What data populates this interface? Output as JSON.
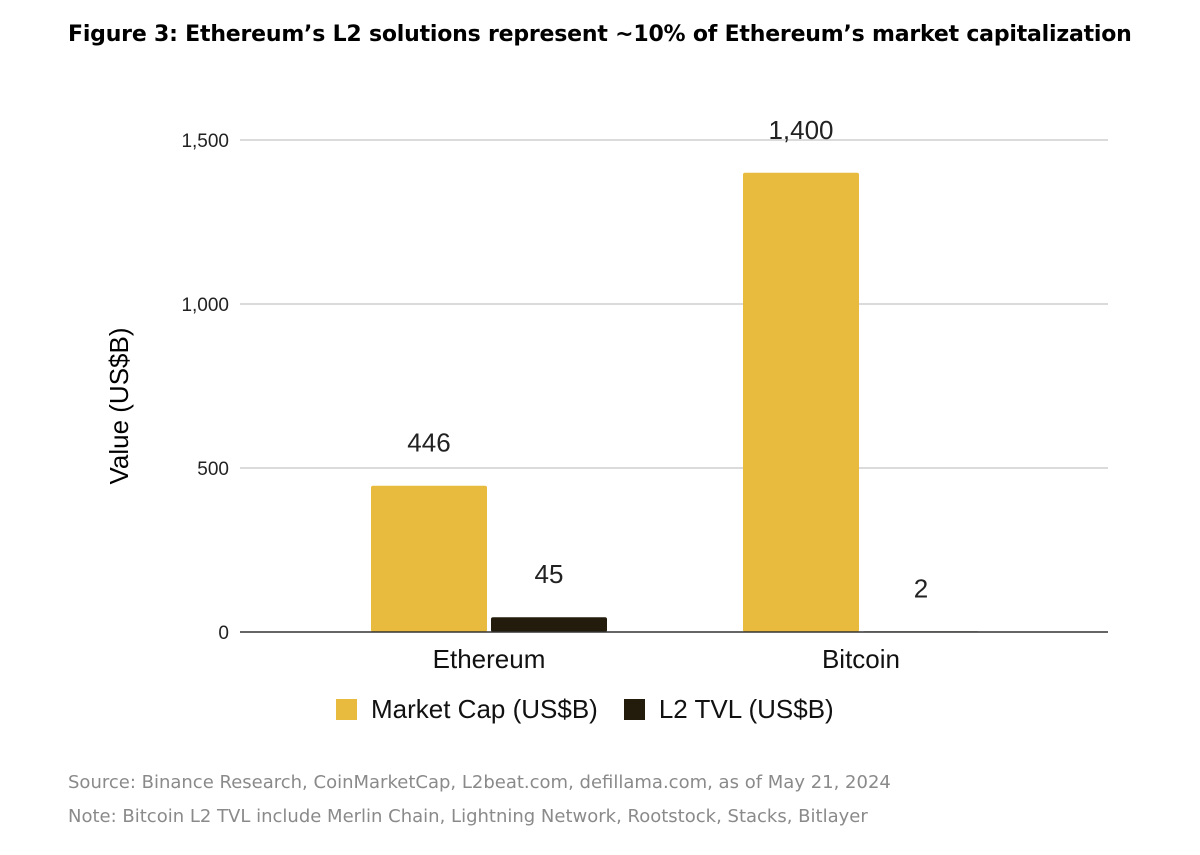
{
  "figure_title": "Figure 3: Ethereum’s L2 solutions represent ~10% of Ethereum’s market capitalization",
  "source_note": "Source: Binance Research, CoinMarketCap, L2beat.com, defillama.com, as of May 21, 2024",
  "note": "Note: Bitcoin L2 TVL include Merlin Chain, Lightning Network, Rootstock, Stacks, Bitlayer",
  "colors": {
    "market_cap": "#E8BA3E",
    "l2_tvl": "#231C0D",
    "grid": "#cfcfcf",
    "axis": "#333333"
  },
  "chart_data": {
    "type": "bar",
    "title": "Figure 3: Ethereum’s L2 solutions represent ~10% of Ethereum’s market capitalization",
    "xlabel": "",
    "ylabel": "Value (US$B)",
    "categories": [
      "Ethereum",
      "Bitcoin"
    ],
    "series": [
      {
        "name": "Market Cap (US$B)",
        "values": [
          446,
          1400
        ],
        "labels": [
          "446",
          "1,400"
        ],
        "color": "#E8BA3E"
      },
      {
        "name": "L2 TVL (US$B)",
        "values": [
          45,
          2
        ],
        "labels": [
          "45",
          "2"
        ],
        "color": "#231C0D"
      }
    ],
    "ylim": [
      0,
      1500
    ],
    "yticks": [
      0,
      500,
      1000,
      1500
    ],
    "ytick_labels": [
      "0",
      "500",
      "1,000",
      "1,500"
    ],
    "grid": true,
    "legend": "bottom"
  }
}
